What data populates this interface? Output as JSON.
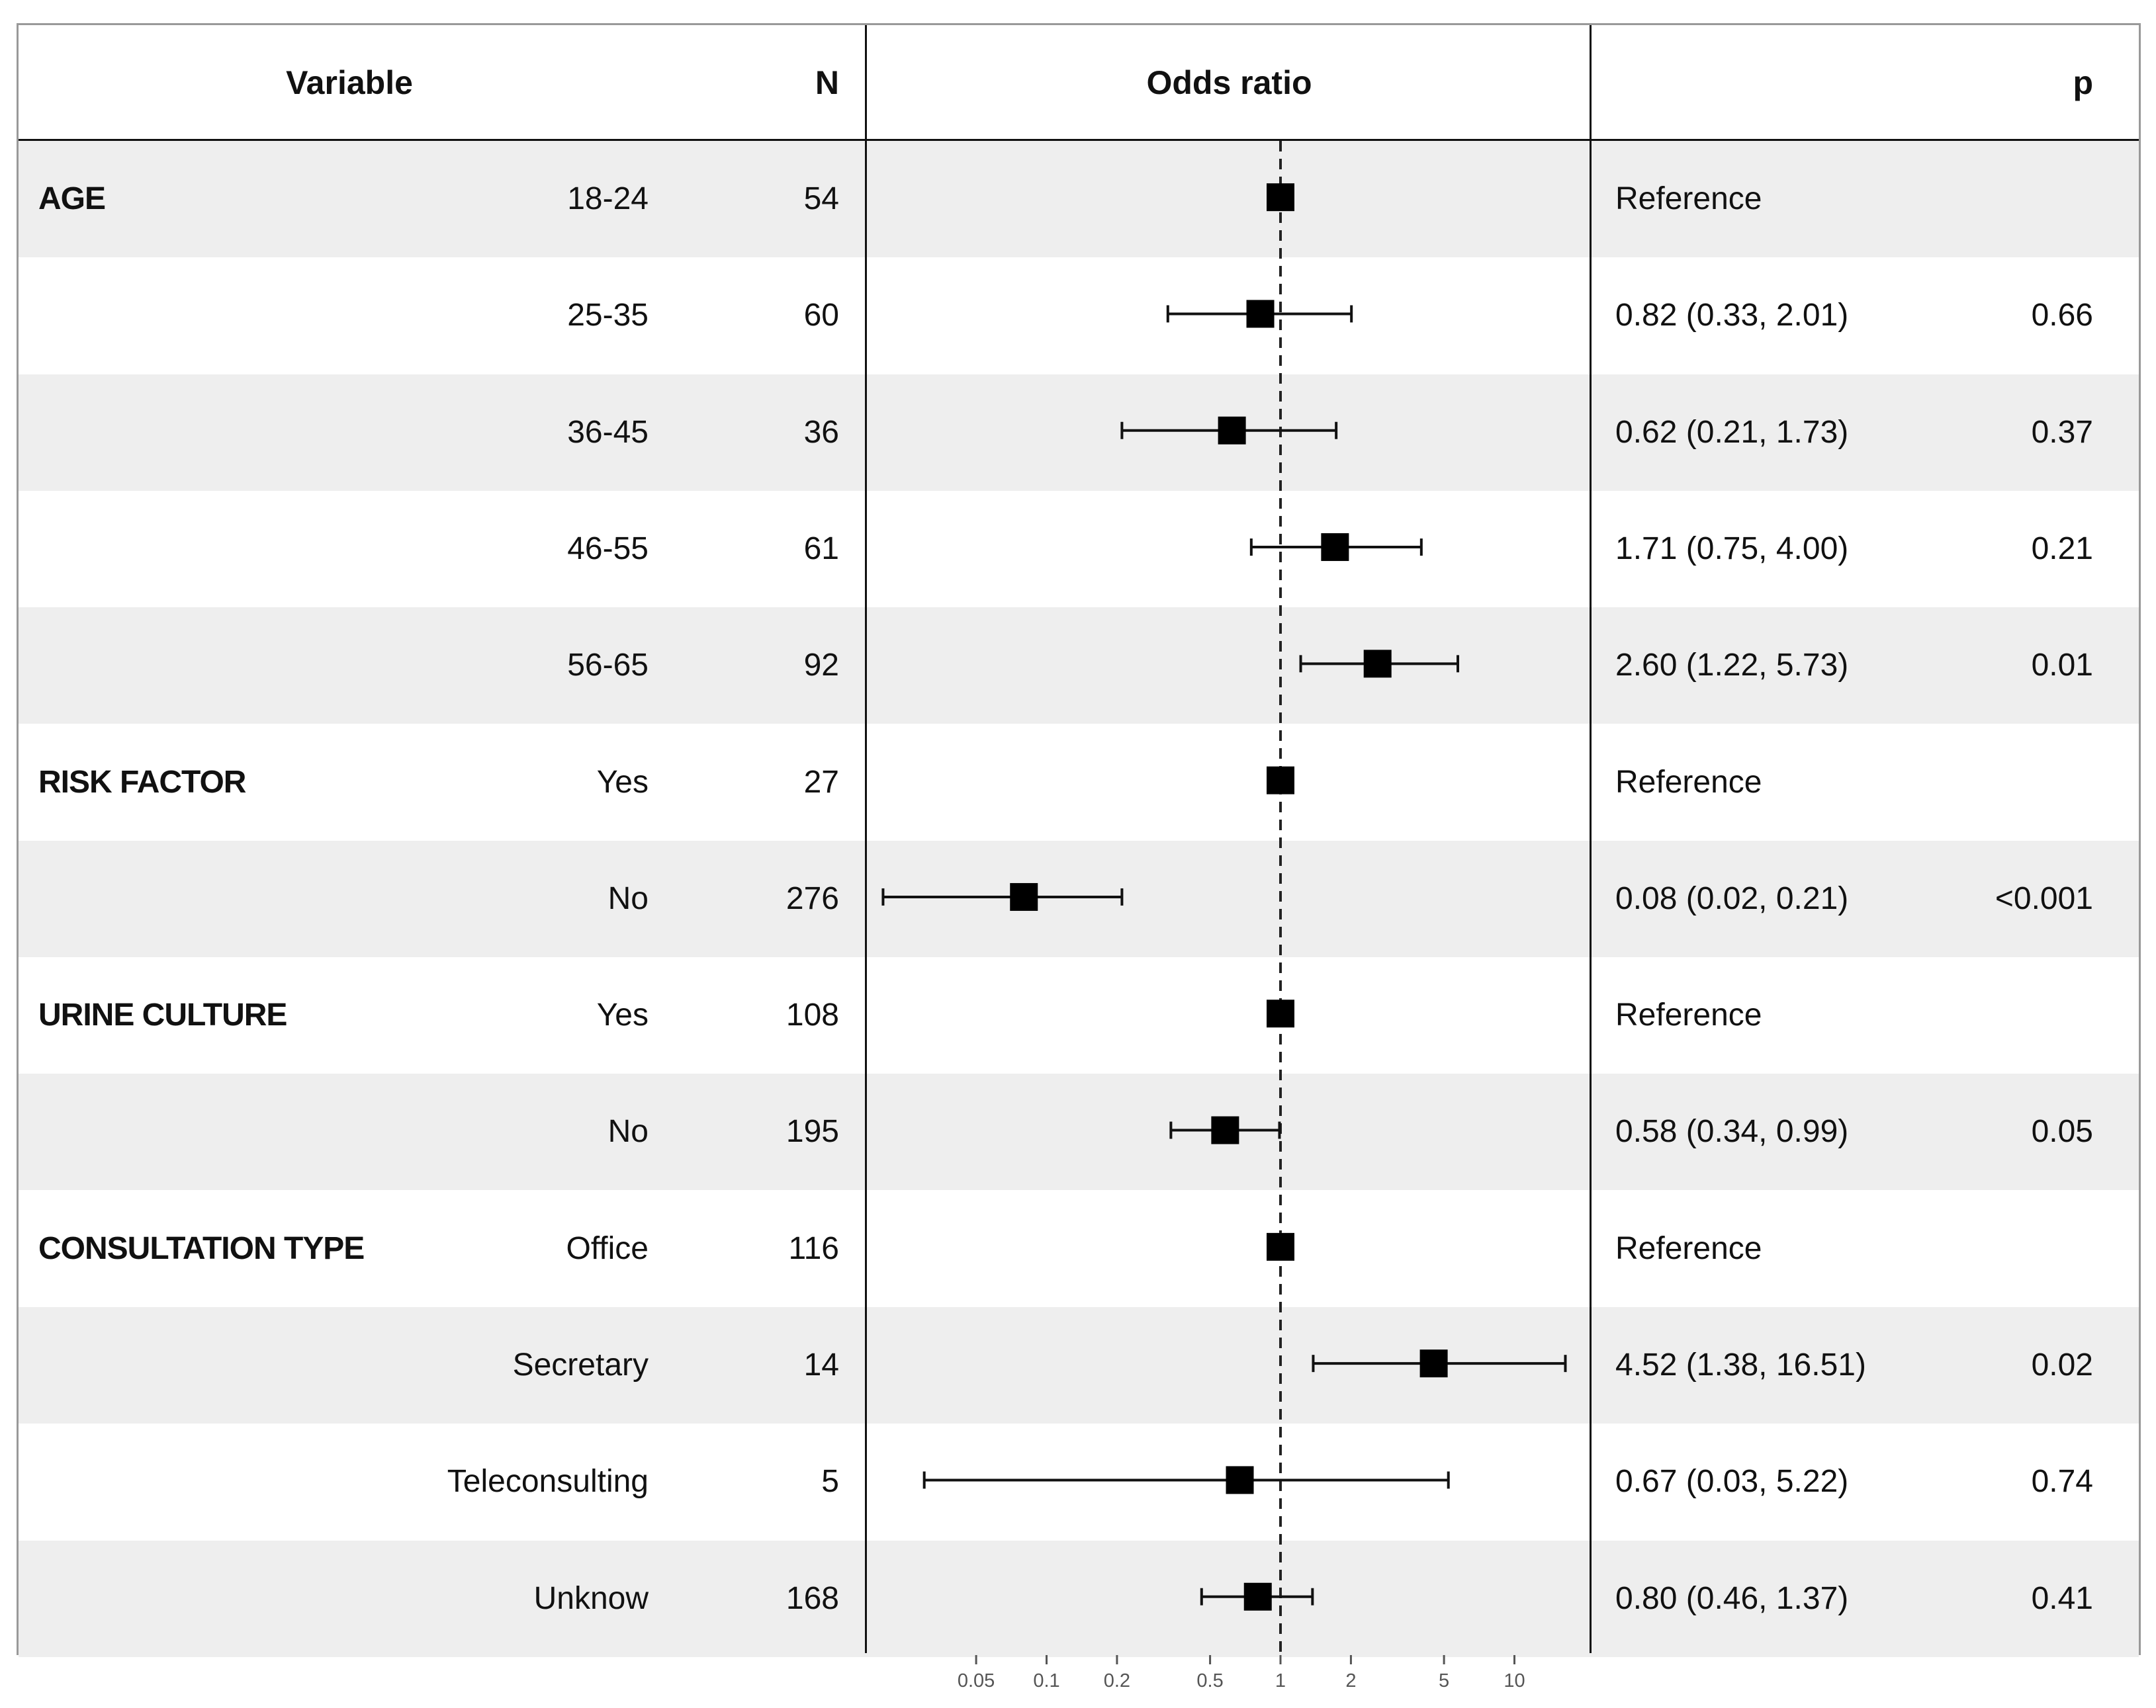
{
  "chart_data": {
    "type": "forest",
    "headers": {
      "variable": "Variable",
      "n": "N",
      "odds_ratio": "Odds ratio",
      "p": "p"
    },
    "x_scale": "log",
    "reference_line": 1,
    "x_ticks": [
      "0.05",
      "0.1",
      "0.2",
      "0.5",
      "1",
      "2",
      "5",
      "10"
    ],
    "rows": [
      {
        "group": "AGE",
        "level": "18-24",
        "n": "54",
        "or": 1,
        "lo": null,
        "hi": null,
        "text": "Reference",
        "p": ""
      },
      {
        "group": "",
        "level": "25-35",
        "n": "60",
        "or": 0.82,
        "lo": 0.33,
        "hi": 2.01,
        "text": "0.82 (0.33, 2.01)",
        "p": "0.66"
      },
      {
        "group": "",
        "level": "36-45",
        "n": "36",
        "or": 0.62,
        "lo": 0.21,
        "hi": 1.73,
        "text": "0.62 (0.21, 1.73)",
        "p": "0.37"
      },
      {
        "group": "",
        "level": "46-55",
        "n": "61",
        "or": 1.71,
        "lo": 0.75,
        "hi": 4.0,
        "text": "1.71 (0.75, 4.00)",
        "p": "0.21"
      },
      {
        "group": "",
        "level": "56-65",
        "n": "92",
        "or": 2.6,
        "lo": 1.22,
        "hi": 5.73,
        "text": "2.60 (1.22, 5.73)",
        "p": "0.01"
      },
      {
        "group": "RISK FACTOR",
        "level": "Yes",
        "n": "27",
        "or": 1,
        "lo": null,
        "hi": null,
        "text": "Reference",
        "p": ""
      },
      {
        "group": "",
        "level": "No",
        "n": "276",
        "or": 0.08,
        "lo": 0.02,
        "hi": 0.21,
        "text": "0.08 (0.02, 0.21)",
        "p": "<0.001"
      },
      {
        "group": "URINE CULTURE",
        "level": "Yes",
        "n": "108",
        "or": 1,
        "lo": null,
        "hi": null,
        "text": "Reference",
        "p": ""
      },
      {
        "group": "",
        "level": "No",
        "n": "195",
        "or": 0.58,
        "lo": 0.34,
        "hi": 0.99,
        "text": "0.58 (0.34, 0.99)",
        "p": "0.05"
      },
      {
        "group": "CONSULTATION TYPE",
        "level": "Office",
        "n": "116",
        "or": 1,
        "lo": null,
        "hi": null,
        "text": "Reference",
        "p": ""
      },
      {
        "group": "",
        "level": "Secretary",
        "n": "14",
        "or": 4.52,
        "lo": 1.38,
        "hi": 16.51,
        "text": "4.52 (1.38, 16.51)",
        "p": "0.02"
      },
      {
        "group": "",
        "level": "Teleconsulting",
        "n": "5",
        "or": 0.67,
        "lo": 0.03,
        "hi": 5.22,
        "text": "0.67 (0.03, 5.22)",
        "p": "0.74"
      },
      {
        "group": "",
        "level": "Unknow",
        "n": "168",
        "or": 0.8,
        "lo": 0.46,
        "hi": 1.37,
        "text": "0.80 (0.46, 1.37)",
        "p": "0.41"
      }
    ]
  }
}
